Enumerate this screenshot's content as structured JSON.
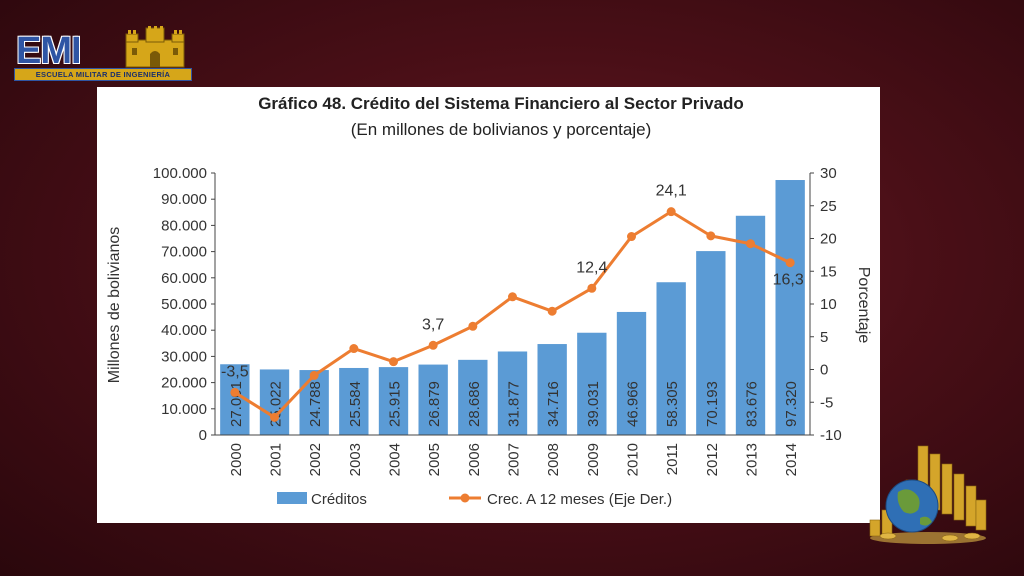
{
  "logo": {
    "letters": "EMI",
    "subtitle": "ESCUELA MILITAR DE INGENIERÍA"
  },
  "decor": {
    "coins_icon": "globe-with-coin-stacks"
  },
  "chart_data": {
    "type": "bar+line",
    "title": "Gráfico 48. Crédito del Sistema Financiero al Sector Privado",
    "subtitle": "(En millones de bolivianos y porcentaje)",
    "ylabel": "Millones de bolivianos",
    "y2label": "Porcentaje",
    "categories": [
      "2000",
      "2001",
      "2002",
      "2003",
      "2004",
      "2005",
      "2006",
      "2007",
      "2008",
      "2009",
      "2010",
      "2011",
      "2012",
      "2013",
      "2014"
    ],
    "ylim": [
      0,
      100000
    ],
    "y2lim": [
      -10,
      30
    ],
    "yticks": [
      "0",
      "10.000",
      "20.000",
      "30.000",
      "40.000",
      "50.000",
      "60.000",
      "70.000",
      "80.000",
      "90.000",
      "100.000"
    ],
    "y2ticks": [
      "-10",
      "-5",
      "0",
      "5",
      "10",
      "15",
      "20",
      "25",
      "30"
    ],
    "series": [
      {
        "name": "Créditos",
        "type": "bar",
        "axis": "left",
        "color": "#5b9bd5",
        "values": [
          27001,
          25022,
          24788,
          25584,
          25915,
          26879,
          28686,
          31877,
          34716,
          39031,
          46966,
          58305,
          70193,
          83676,
          97320
        ],
        "labels": [
          "27.001",
          "25.022",
          "24.788",
          "25.584",
          "25.915",
          "26.879",
          "28.686",
          "31.877",
          "34.716",
          "39.031",
          "46.966",
          "58.305",
          "70.193",
          "83.676",
          "97.320"
        ]
      },
      {
        "name": "Crec. A 12 meses (Eje Der.)",
        "type": "line",
        "axis": "right",
        "color": "#ed7d31",
        "values": [
          -3.5,
          -7.3,
          -0.9,
          3.2,
          1.2,
          3.7,
          6.6,
          11.1,
          8.9,
          12.4,
          20.3,
          24.1,
          20.4,
          19.2,
          16.3
        ],
        "point_labels": [
          {
            "index": 0,
            "text": "-3,5"
          },
          {
            "index": 5,
            "text": "3,7"
          },
          {
            "index": 9,
            "text": "12,4"
          },
          {
            "index": 11,
            "text": "24,1"
          },
          {
            "index": 14,
            "text": "16,3"
          }
        ]
      }
    ],
    "legend": "bottom",
    "grid": false
  }
}
